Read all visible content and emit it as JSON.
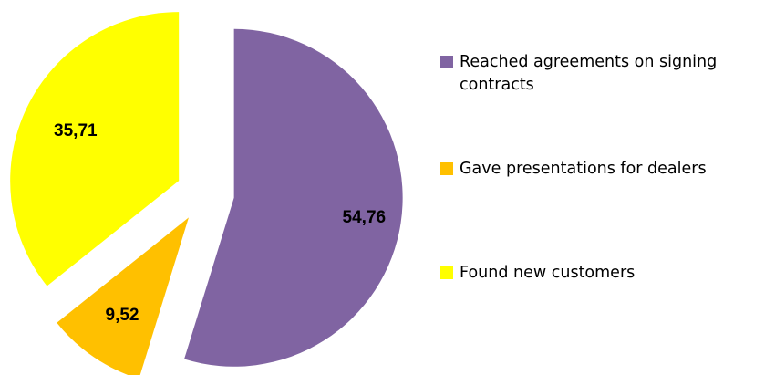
{
  "chart_data": {
    "type": "pie",
    "exploded": true,
    "slices": [
      {
        "name": "Reached agreements on signing contracts",
        "value": 54.76,
        "label": "54,76",
        "color": "#8064a2"
      },
      {
        "name": "Gave presentations for dealers",
        "value": 9.52,
        "label": "9,52",
        "color": "#ffc000"
      },
      {
        "name": "Found new customers",
        "value": 35.71,
        "label": "35,71",
        "color": "#ffff00"
      }
    ],
    "legend": {
      "position": "right"
    }
  }
}
